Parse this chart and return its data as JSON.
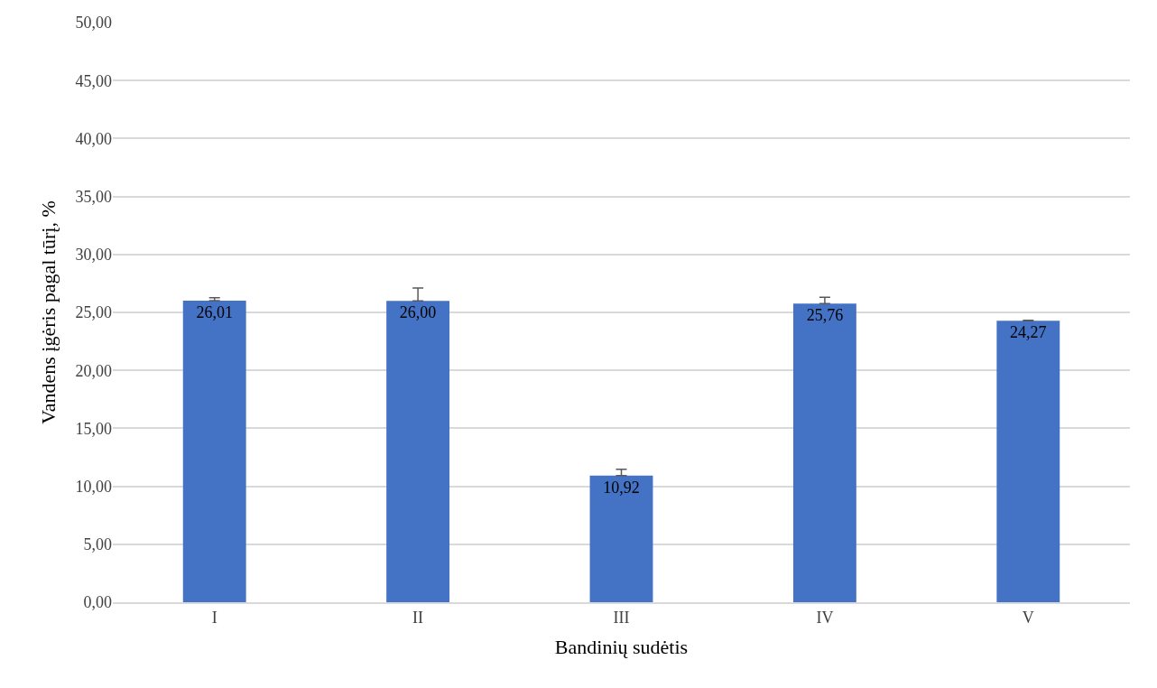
{
  "chart_data": {
    "type": "bar",
    "xlabel": "Bandinių sudėtis",
    "ylabel": "Vandens įgėris pagal tūrį, %",
    "categories": [
      "I",
      "II",
      "III",
      "IV",
      "V"
    ],
    "values": [
      26.01,
      26.0,
      10.92,
      25.76,
      24.27
    ],
    "value_labels": [
      "26,01",
      "26,00",
      "10,92",
      "25,76",
      "24,27"
    ],
    "errors": [
      [
        26.01,
        26.26
      ],
      [
        26.0,
        27.1
      ],
      [
        10.92,
        11.47
      ],
      [
        25.76,
        26.31
      ],
      [
        24.27,
        24.32
      ]
    ],
    "color": "#4472c4",
    "ylim": [
      0,
      50
    ],
    "yticks": [
      {
        "value": 0,
        "label": "0,00"
      },
      {
        "value": 5,
        "label": "5,00"
      },
      {
        "value": 10,
        "label": "10,00"
      },
      {
        "value": 15,
        "label": "15,00"
      },
      {
        "value": 20,
        "label": "20,00"
      },
      {
        "value": 25,
        "label": "25,00"
      },
      {
        "value": 30,
        "label": "30,00"
      },
      {
        "value": 35,
        "label": "35,00"
      },
      {
        "value": 40,
        "label": "40,00"
      },
      {
        "value": 45,
        "label": "45,00"
      },
      {
        "value": 50,
        "label": "50,00"
      }
    ],
    "grid": "y"
  }
}
